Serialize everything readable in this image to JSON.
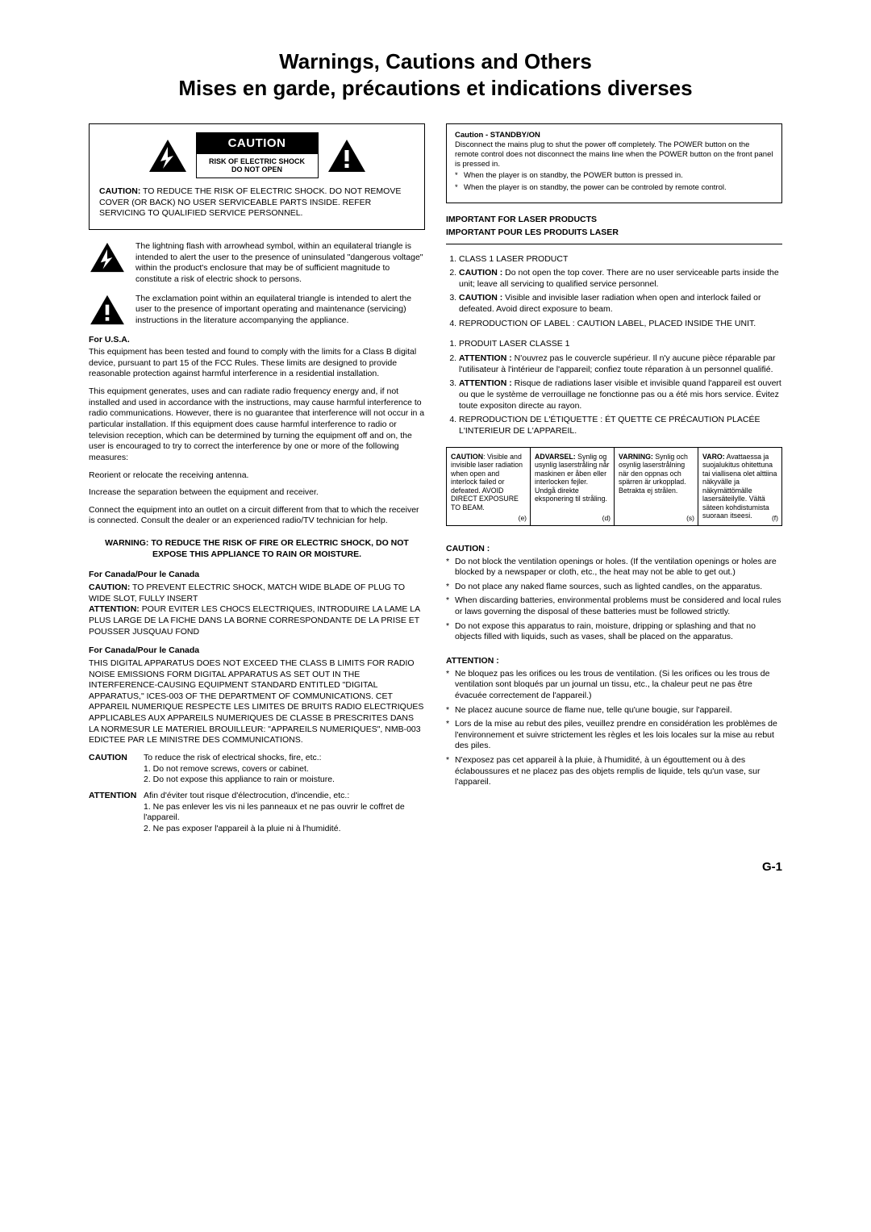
{
  "title_line1": "Warnings, Cautions and Others",
  "title_line2": "Mises en garde, précautions et indications diverses",
  "caution_box": {
    "bar": "CAUTION",
    "sub1": "RISK OF ELECTRIC SHOCK",
    "sub2": "DO NOT OPEN",
    "body_lead": "CAUTION:",
    "body": " TO REDUCE THE RISK OF ELECTRIC SHOCK. DO NOT REMOVE COVER (OR BACK) NO USER SERVICEABLE PARTS INSIDE. REFER SERVICING TO QUALIFIED SERVICE PERSONNEL."
  },
  "bolt_text": "The lightning flash with arrowhead symbol, within an equilateral triangle is intended to alert the user to the presence of uninsulated \"dangerous voltage\" within the product's enclosure that may be of sufficient magnitude to constitute a risk of electric shock to persons.",
  "excl_text": "The exclamation point within an equilateral triangle is intended to alert the user to the presence of important operating and maintenance (servicing) instructions in the literature accompanying the appliance.",
  "usa_head": "For U.S.A.",
  "usa_p1": "This equipment has been tested and found to comply with the limits for a Class B digital device, pursuant to part 15 of the FCC Rules. These limits are designed to provide reasonable protection against harmful interference in a residential installation.",
  "usa_p2": "This equipment generates, uses and can radiate radio frequency energy and, if not installed and used in accordance with the instructions, may cause harmful interference to radio communications. However, there is no guarantee that interference will not occur in a particular installation. If this equipment does cause harmful interference to radio or television reception, which can be determined by turning the equipment off and on, the user is encouraged to try to correct the interference by one or more of the following measures:",
  "usa_m1": "Reorient or relocate the receiving antenna.",
  "usa_m2": "Increase the separation between the equipment and receiver.",
  "usa_m3": "Connect the equipment into an outlet on a circuit different from that to which the receiver is connected. Consult the dealer or an experienced radio/TV technician for help.",
  "warn_fire": "WARNING: TO REDUCE THE RISK OF FIRE OR ELECTRIC SHOCK, DO NOT EXPOSE THIS APPLIANCE TO RAIN OR MOISTURE.",
  "canada_head": "For Canada/Pour le Canada",
  "canada_p1a": "CAUTION:",
  "canada_p1b": " TO PREVENT ELECTRIC SHOCK, MATCH WIDE BLADE OF PLUG TO WIDE SLOT, FULLY INSERT",
  "canada_p2a": "ATTENTION:",
  "canada_p2b": " POUR EVITER LES CHOCS ELECTRIQUES, INTRODUIRE LA LAME LA PLUS LARGE DE LA FICHE DANS LA BORNE CORRESPONDANTE DE LA PRISE ET POUSSER JUSQUAU FOND",
  "canada2_p": "THIS DIGITAL APPARATUS DOES NOT EXCEED THE CLASS B LIMITS FOR RADIO NOISE EMISSIONS FORM DIGITAL APPARATUS AS SET OUT IN THE INTERFERENCE-CAUSING EQUIPMENT STANDARD ENTITLED \"DIGITAL APPARATUS,\" ICES-003 OF THE DEPARTMENT OF COMMUNICATIONS. CET APPAREIL NUMERIQUE RESPECTE LES LIMITES DE BRUITS RADIO ELECTRIQUES APPLICABLES AUX APPAREILS NUMERIQUES DE CLASSE B PRESCRITES DANS LA NORMESUR LE MATERIEL BROUILLEUR: \"APPAREILS NUMERIQUES\", NMB-003 EDICTEE PAR LE MINISTRE DES COMMUNICATIONS.",
  "caution_def_label": "CAUTION",
  "caution_def_body": "To reduce the risk of electrical shocks, fire, etc.:\n1. Do not remove screws, covers or cabinet.\n2. Do not expose this appliance to rain or moisture.",
  "attention_def_label": "ATTENTION",
  "attention_def_body": "Afin d'éviter tout risque d'électrocution, d'incendie, etc.:\n1. Ne pas enlever les vis ni les panneaux et ne pas ouvrir le coffret de l'appareil.\n2. Ne pas exposer l'appareil à la pluie ni à l'humidité.",
  "standby_head": "Caution - STANDBY/ON",
  "standby_body": "Disconnect the mains plug to shut the power off completely. The POWER button on the remote control does not disconnect the mains line when the POWER button on the front panel is pressed in.",
  "standby_b1": "When the player is on standby, the POWER button is pressed in.",
  "standby_b2": "When the player is on standby, the power can be controled by remote control.",
  "imp_en": "IMPORTANT FOR LASER PRODUCTS",
  "imp_fr": "IMPORTANT POUR LES PRODUITS LASER",
  "laser_en": [
    "CLASS 1 LASER PRODUCT",
    "<b>CAUTION :</b> Do not open the top cover. There are no user serviceable parts inside the unit; leave all servicing to qualified service personnel.",
    "<b>CAUTION :</b> Visible and invisible laser radiation when open and interlock failed or defeated. Avoid direct exposure to beam.",
    "REPRODUCTION OF LABEL : CAUTION LABEL, PLACED INSIDE THE UNIT."
  ],
  "laser_fr": [
    "PRODUIT LASER CLASSE 1",
    "<b>ATTENTION :</b> N'ouvrez pas le couvercle supérieur. Il n'y aucune pièce réparable par l'utilisateur à l'intérieur de l'appareil; confiez toute réparation à un personnel qualifié.",
    "<b>ATTENTION :</b> Risque de radiations laser visible et invisible quand l'appareil est ouvert ou que le système de verrouillage ne fonctionne pas ou a été mis hors service. Évitez toute expositon directe au rayon.",
    "REPRODUCTION DE L'ÉTIQUETTE : ÉT QUETTE CE PRÉCAUTION PLACÉE L'INTERIEUR DE L'APPAREIL."
  ],
  "lang_cells": [
    {
      "html": "<b>CAUTION</b>: Visible and invisible laser radiation when open and interlock failed or defeated. AVOID DIRECT EXPOSURE TO BEAM.",
      "tag": "(e)"
    },
    {
      "html": "<b>ADVARSEL:</b> Synlig og usynlig laserstråling når maskinen er åben eller interlocken fejler. Undgå direkte eksponering til stråling.",
      "tag": "(d)"
    },
    {
      "html": "<b>VARNING:</b> Synlig och osynlig laserstrålning när den oppnas och spärren är urkopplad. Betrakta ej strålen.",
      "tag": "(s)"
    },
    {
      "html": "<b>VARO:</b> Avattaessa ja suojalukitus ohitettuna tai viallisena olet alttiina näkyvälle ja näkymättömälle lasersäteilylle. Vältä säteen kohdistumista suoraan itseesi.",
      "tag": "(f)"
    }
  ],
  "caution_head2": "CAUTION :",
  "caution_list": [
    "Do not block the ventilation openings or holes. (If the ventilation openings or holes are blocked by a newspaper or cloth, etc., the heat may not be able to get out.)",
    "Do not place any naked flame sources, such as lighted candles, on the apparatus.",
    "When discarding batteries, environmental problems must be considered and local rules or laws governing the disposal of these batteries must be followed strictly.",
    "Do not expose this apparatus to rain, moisture, dripping or splashing and that no objects filled with liquids, such as vases, shall be placed on the apparatus."
  ],
  "attention_head2": "ATTENTION :",
  "attention_list": [
    "Ne bloquez pas les orifices ou les trous de ventilation. (Si les orifices ou les trous de ventilation sont bloqués par un journal un tissu, etc., la chaleur peut ne pas être évacuée correctement de l'appareil.)",
    "Ne placez aucune source de flame nue, telle qu'une bougie, sur l'appareil.",
    "Lors de la mise au rebut des piles, veuillez prendre en considération les problèmes de l'environnement et suivre strictement les règles et les lois locales sur la mise au rebut des piles.",
    "N'exposez pas cet appareil à la pluie, à l'humidité, à un égouttement ou à des éclaboussures et ne placez pas des objets remplis de liquide, tels qu'un vase, sur l'appareil."
  ],
  "page_no": "G-1",
  "colors": {
    "black": "#000000",
    "white": "#ffffff"
  }
}
